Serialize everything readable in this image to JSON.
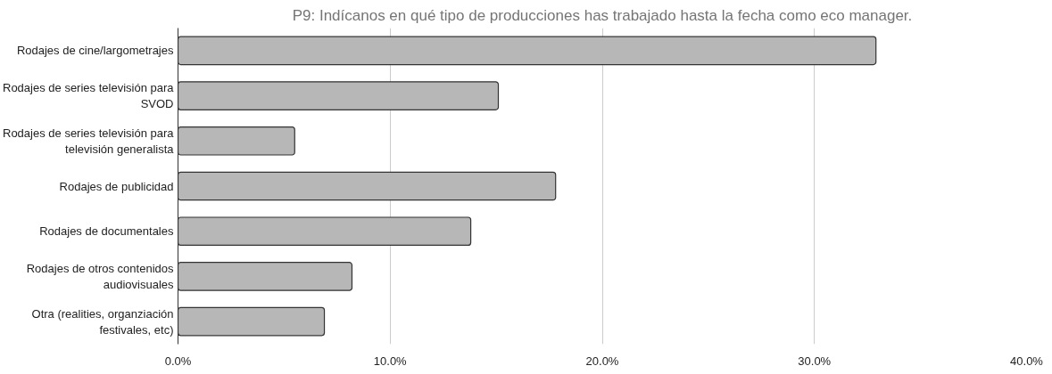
{
  "chart_data": {
    "type": "bar",
    "orientation": "horizontal",
    "title": "P9: Indícanos en qué tipo de producciones has trabajado hasta la fecha como eco manager.",
    "categories": [
      "Rodajes de cine/largometrajes",
      "Rodajes de series televisión para SVOD",
      "Rodajes de series televisión para televisión generalista",
      "Rodajes de publicidad",
      "Rodajes de documentales",
      "Rodajes de otros contenidos audiovisuales",
      "Otra (realities, organziación festivales, etc)"
    ],
    "values": [
      32.9,
      15.1,
      5.5,
      17.8,
      13.8,
      8.2,
      6.9
    ],
    "color": "#b7b7b7",
    "xlim": [
      0,
      40
    ],
    "xticks": [
      {
        "value": 0,
        "label": "0.0%"
      },
      {
        "value": 10,
        "label": "10.0%"
      },
      {
        "value": 20,
        "label": "20.0%"
      },
      {
        "value": 30,
        "label": "30.0%"
      },
      {
        "value": 40,
        "label": "40.0%"
      }
    ],
    "grid": "x"
  }
}
